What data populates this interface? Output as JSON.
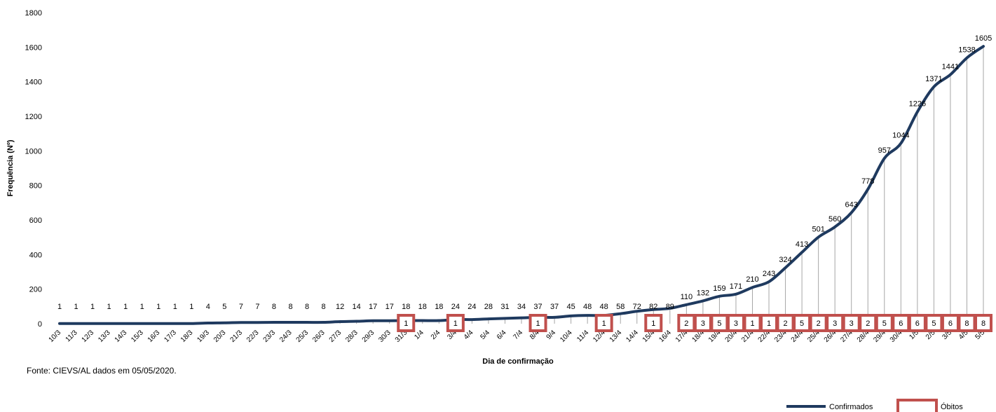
{
  "chart_data": {
    "type": "line",
    "xlabel": "Dia de confirmação",
    "ylabel": "Frequência (Nº)",
    "ylim": [
      0,
      1800
    ],
    "yticks": [
      0,
      200,
      400,
      600,
      800,
      1000,
      1200,
      1400,
      1600,
      1800
    ],
    "grid": "vertical drop lines",
    "legend_position": "bottom-right",
    "categories": [
      "10/3",
      "11/3",
      "12/3",
      "13/3",
      "14/3",
      "15/3",
      "16/3",
      "17/3",
      "18/3",
      "19/3",
      "20/3",
      "21/3",
      "22/3",
      "23/3",
      "24/3",
      "25/3",
      "26/3",
      "27/3",
      "28/3",
      "29/3",
      "30/3",
      "31/3",
      "1/4",
      "2/4",
      "3/4",
      "4/4",
      "5/4",
      "6/4",
      "7/4",
      "8/4",
      "9/4",
      "10/4",
      "11/4",
      "12/4",
      "13/4",
      "14/4",
      "15/4",
      "16/4",
      "17/4",
      "18/4",
      "19/4",
      "20/4",
      "21/4",
      "22/4",
      "23/4",
      "24/4",
      "25/4",
      "26/4",
      "27/4",
      "28/4",
      "29/4",
      "30/4",
      "1/5",
      "2/5",
      "3/5",
      "4/5",
      "5/5"
    ],
    "series": [
      {
        "name": "Confirmados",
        "color": "#1f3a5f",
        "values": [
          1,
          1,
          1,
          1,
          1,
          1,
          1,
          1,
          1,
          4,
          5,
          7,
          7,
          8,
          8,
          8,
          8,
          12,
          14,
          17,
          17,
          18,
          18,
          18,
          24,
          24,
          28,
          31,
          34,
          37,
          37,
          45,
          48,
          48,
          58,
          72,
          82,
          89,
          110,
          132,
          159,
          171,
          210,
          243,
          324,
          413,
          501,
          560,
          643,
          778,
          957,
          1044,
          1226,
          1371,
          1441,
          1538,
          1605
        ]
      },
      {
        "name": "Óbitos",
        "color": "#c0504d",
        "values": [
          null,
          null,
          null,
          null,
          null,
          null,
          null,
          null,
          null,
          null,
          null,
          null,
          null,
          null,
          null,
          null,
          null,
          null,
          null,
          null,
          null,
          1,
          null,
          null,
          1,
          null,
          null,
          null,
          null,
          1,
          null,
          null,
          null,
          1,
          null,
          null,
          1,
          null,
          2,
          3,
          5,
          3,
          1,
          1,
          2,
          5,
          2,
          3,
          3,
          2,
          5,
          6,
          6,
          5,
          6,
          8,
          8
        ]
      }
    ]
  },
  "source_note": "Fonte:  CIEVS/AL  dados  em 05/05/2020.",
  "colors": {
    "confirmados": "#1f3a5f",
    "obitos": "#c0504d",
    "grid": "#a6a6a6"
  }
}
